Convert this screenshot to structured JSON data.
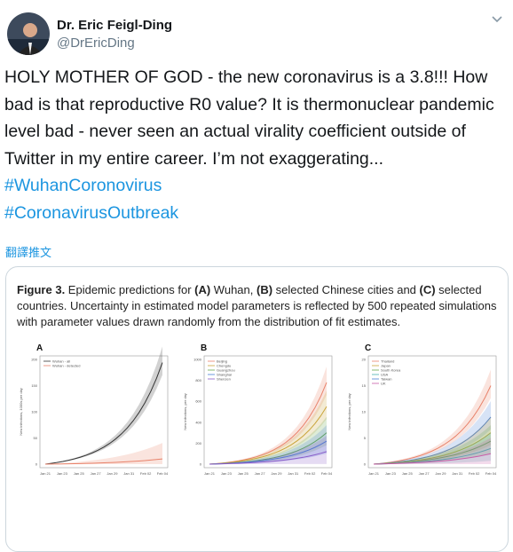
{
  "author": {
    "name": "Dr. Eric Feigl-Ding",
    "handle": "@DrEricDing"
  },
  "tweet": {
    "text": "HOLY MOTHER OF GOD - the new coronavirus is a 3.8!!! How bad is that reproductive R0 value? It is thermonuclear pandemic level bad - never seen an actual virality coefficient outside of Twitter in my entire career. I’m not exaggerating... ",
    "hashtags": [
      "#WuhanCoronovirus",
      "#CoronavirusOutbreak"
    ],
    "translate": "翻譯推文"
  },
  "figure": {
    "caption": [
      {
        "text": "Figure 3.",
        "bold": true
      },
      {
        "text": " Epidemic predictions for ",
        "bold": false
      },
      {
        "text": "(A)",
        "bold": true
      },
      {
        "text": " Wuhan, ",
        "bold": false
      },
      {
        "text": "(B)",
        "bold": true
      },
      {
        "text": " selected Chinese cities and ",
        "bold": false
      },
      {
        "text": "(C)",
        "bold": true
      },
      {
        "text": " selected countries. Uncertainty in estimated model parameters is reflected by 500 repeated simulations with parameter values drawn randomly from the distribution of fit estimates.",
        "bold": false
      }
    ],
    "xticks": [
      "Jan 21",
      "Jan 23",
      "Jan 25",
      "Jan 27",
      "Jan 29",
      "Jan 31",
      "Feb 02",
      "Feb 04"
    ],
    "panels": [
      {
        "label": "A",
        "y_label": "New infections, 1000s per day",
        "yticks": [
          "200",
          "150",
          "100",
          "50",
          "0"
        ],
        "legend": [
          {
            "name": "Wuhan - all",
            "color": "#333333"
          },
          {
            "name": "Wuhan - detected",
            "color": "#e8826a"
          }
        ]
      },
      {
        "label": "B",
        "y_label": "New infections, per day",
        "yticks": [
          "1000",
          "800",
          "600",
          "400",
          "200",
          "0"
        ],
        "legend": [
          {
            "name": "Beijing",
            "color": "#e8826a"
          },
          {
            "name": "Chengdu",
            "color": "#c9a43a"
          },
          {
            "name": "Guangzhou",
            "color": "#6aa84f"
          },
          {
            "name": "Shanghai",
            "color": "#4a7fd4"
          },
          {
            "name": "Shenzen",
            "color": "#8a5cc9"
          }
        ]
      },
      {
        "label": "C",
        "y_label": "New infections, per day",
        "yticks": [
          "20",
          "15",
          "10",
          "5",
          "0"
        ],
        "legend": [
          {
            "name": "Thailand",
            "color": "#e8826a"
          },
          {
            "name": "Japan",
            "color": "#c9a43a"
          },
          {
            "name": "South Korea",
            "color": "#6aa84f"
          },
          {
            "name": "USA",
            "color": "#4ab0b0"
          },
          {
            "name": "Taiwan",
            "color": "#4a7fd4"
          },
          {
            "name": "UK",
            "color": "#c95ca8"
          }
        ]
      }
    ]
  }
}
